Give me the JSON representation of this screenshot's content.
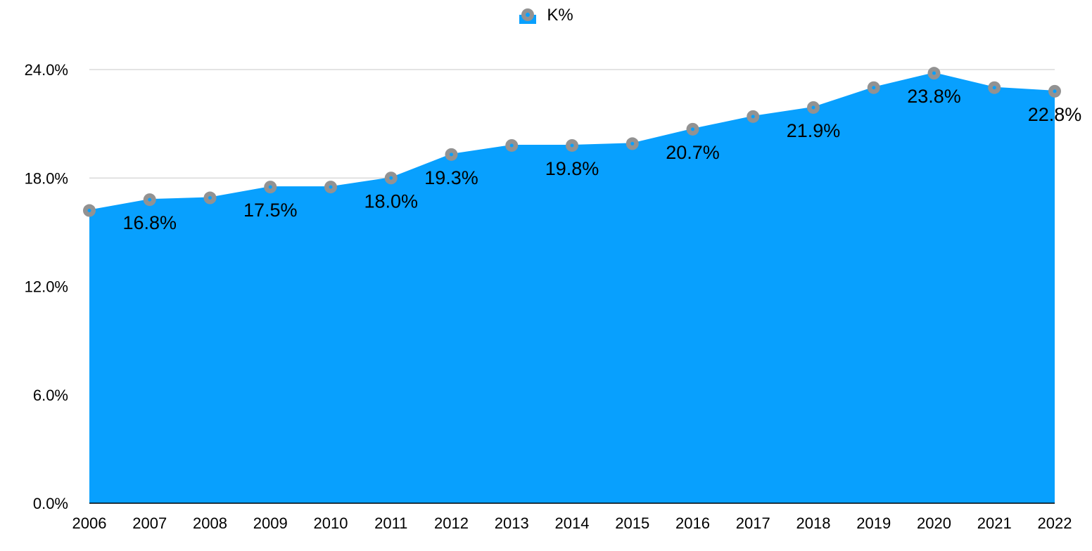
{
  "chart_data": {
    "type": "area",
    "title": "",
    "xlabel": "",
    "ylabel": "",
    "categories": [
      "2006",
      "2007",
      "2008",
      "2009",
      "2010",
      "2011",
      "2012",
      "2013",
      "2014",
      "2015",
      "2016",
      "2017",
      "2018",
      "2019",
      "2020",
      "2021",
      "2022"
    ],
    "series": [
      {
        "name": "K%",
        "values": [
          16.2,
          16.8,
          16.9,
          17.5,
          17.5,
          18.0,
          19.3,
          19.8,
          19.8,
          19.9,
          20.7,
          21.4,
          21.9,
          23.0,
          23.8,
          23.0,
          22.8
        ],
        "fill_color": "#08a0fe",
        "marker_color": "#929292",
        "marker_center_color": "#08a0fe"
      }
    ],
    "data_labels": [
      {
        "index": 1,
        "text": "16.8%"
      },
      {
        "index": 3,
        "text": "17.5%"
      },
      {
        "index": 5,
        "text": "18.0%"
      },
      {
        "index": 6,
        "text": "19.3%"
      },
      {
        "index": 8,
        "text": "19.8%"
      },
      {
        "index": 10,
        "text": "20.7%"
      },
      {
        "index": 12,
        "text": "21.9%"
      },
      {
        "index": 14,
        "text": "23.8%"
      },
      {
        "index": 16,
        "text": "22.8%"
      }
    ],
    "ylim": [
      0,
      24
    ],
    "y_ticks": [
      0,
      6,
      12,
      18,
      24
    ],
    "y_tick_labels": [
      "0.0%",
      "6.0%",
      "12.0%",
      "18.0%",
      "24.0%"
    ],
    "grid": true,
    "legend": {
      "position": "top-center",
      "entries": [
        "K%"
      ]
    },
    "colors": {
      "gridline": "#c8c8c8",
      "axis": "#000000"
    }
  }
}
